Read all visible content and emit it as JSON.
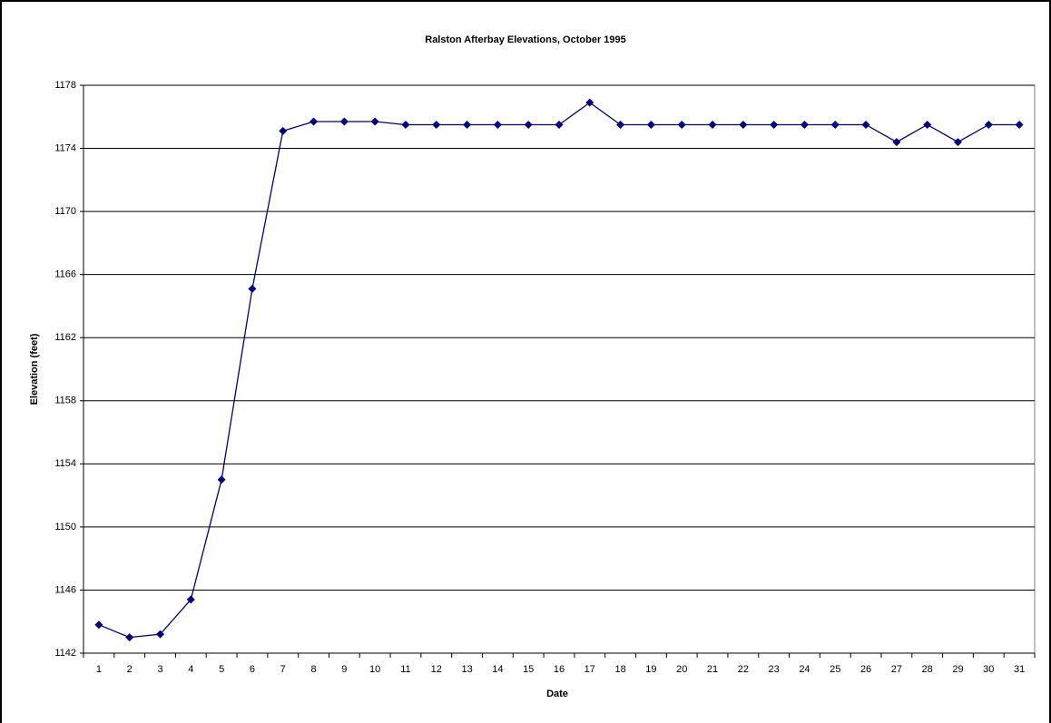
{
  "chart_data": {
    "type": "line",
    "title": "Ralston Afterbay Elevations, October 1995",
    "x_label": "Date",
    "y_label": "Elevation (feet)",
    "categories": [
      "1",
      "2",
      "3",
      "4",
      "5",
      "6",
      "7",
      "8",
      "9",
      "10",
      "11",
      "12",
      "13",
      "14",
      "15",
      "16",
      "17",
      "18",
      "19",
      "20",
      "21",
      "22",
      "23",
      "24",
      "25",
      "26",
      "27",
      "28",
      "29",
      "30",
      "31"
    ],
    "values": [
      1143.8,
      1143.0,
      1143.2,
      1145.4,
      1153.0,
      1165.1,
      1175.1,
      1175.7,
      1175.7,
      1175.7,
      1175.5,
      1175.5,
      1175.5,
      1175.5,
      1175.5,
      1175.5,
      1176.9,
      1175.5,
      1175.5,
      1175.5,
      1175.5,
      1175.5,
      1175.5,
      1175.5,
      1175.5,
      1175.5,
      1174.4,
      1175.5,
      1174.4,
      1175.5,
      1175.5
    ],
    "color": "#000080",
    "ylim": [
      1142,
      1178
    ],
    "yticks": [
      1142,
      1146,
      1150,
      1154,
      1158,
      1162,
      1166,
      1170,
      1174,
      1178
    ],
    "grid": true
  }
}
